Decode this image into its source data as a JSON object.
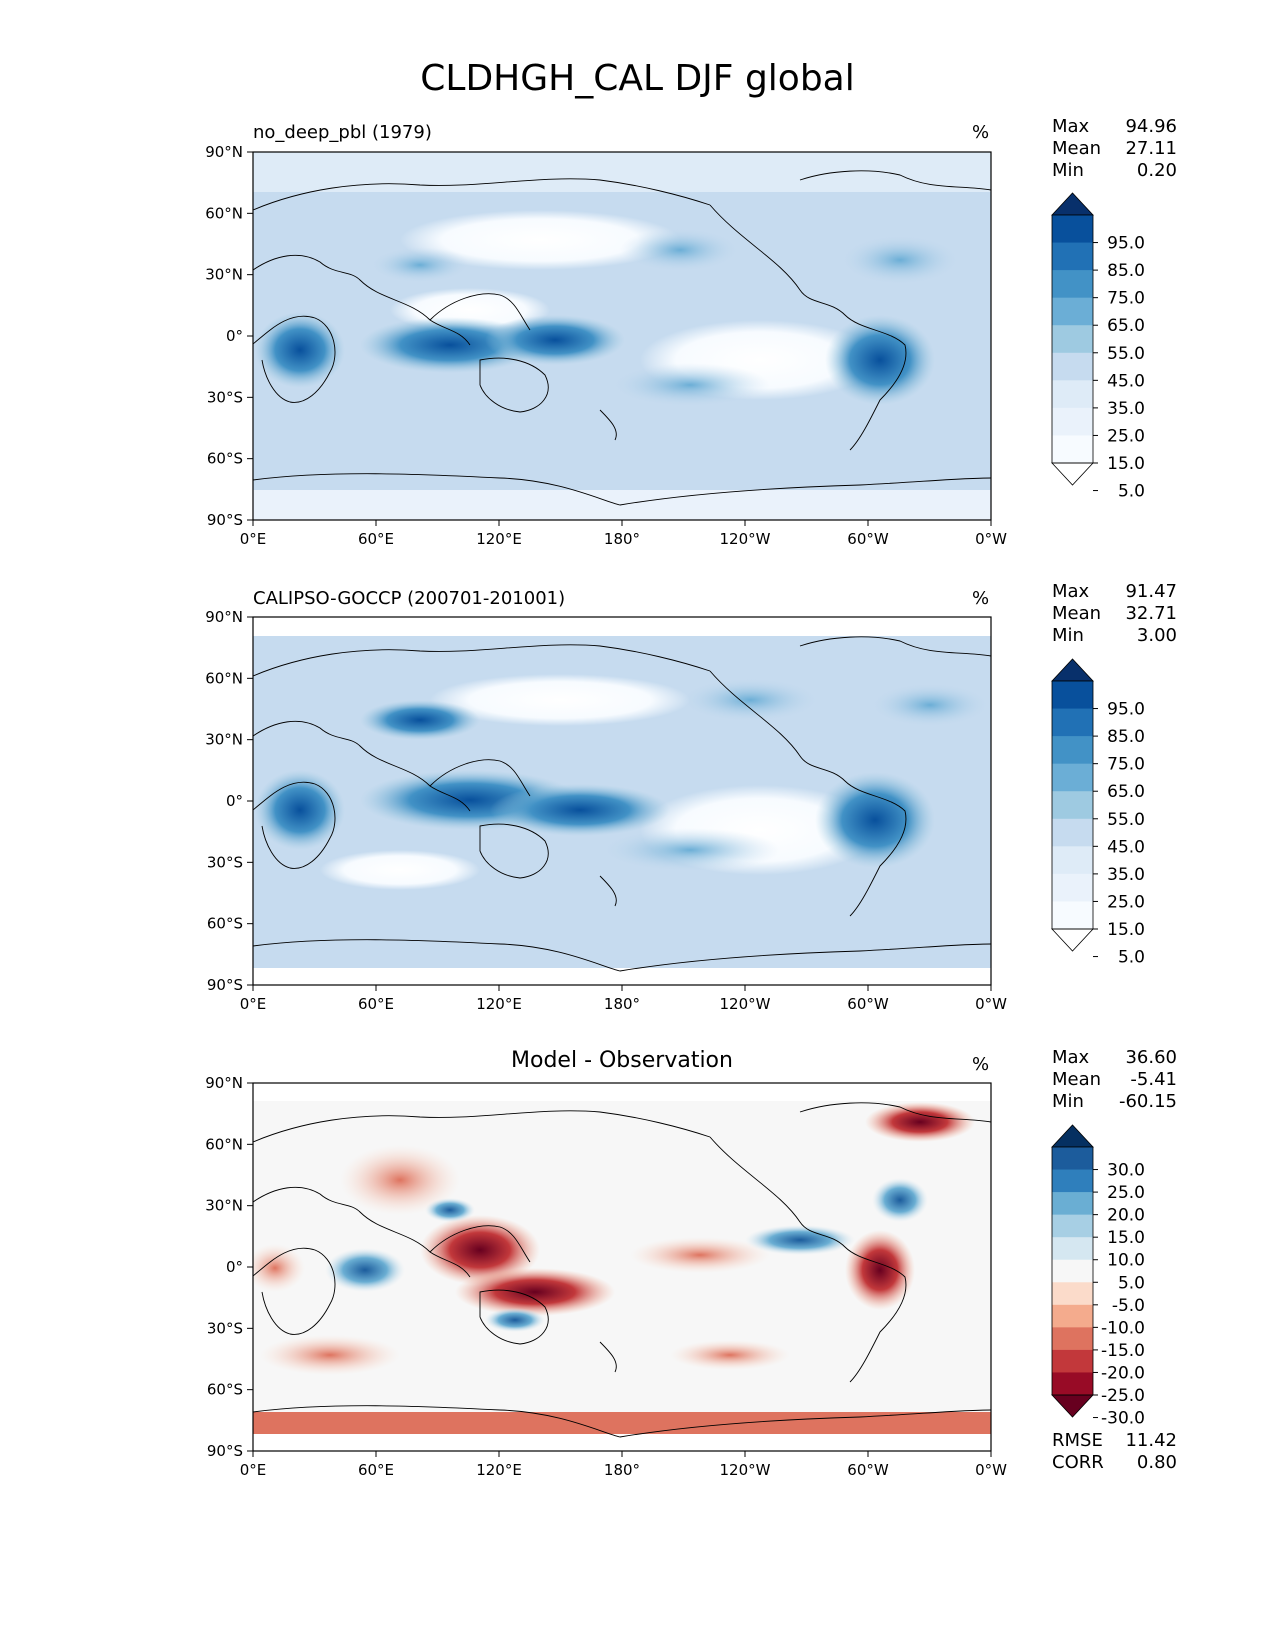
{
  "title": "CLDHGH_CAL DJF global",
  "chart_data": [
    {
      "type": "heatmap",
      "panel_title": "no_deep_pbl (1979)",
      "units": "%",
      "stats": [
        {
          "label": "Max",
          "value": "94.96"
        },
        {
          "label": "Mean",
          "value": "27.11"
        },
        {
          "label": "Min",
          "value": "0.20"
        }
      ],
      "colorbar": {
        "labels": [
          "95.0",
          "85.0",
          "75.0",
          "65.0",
          "55.0",
          "45.0",
          "35.0",
          "25.0",
          "15.0",
          "5.0"
        ],
        "colors": [
          "#08306b",
          "#08509c",
          "#2171b5",
          "#4292c6",
          "#6baed6",
          "#9ecae1",
          "#c6dbef",
          "#deebf7",
          "#eaf2fb",
          "#f7fbff",
          "#ffffff"
        ]
      },
      "xticks": [
        "0°E",
        "60°E",
        "120°E",
        "180°",
        "120°W",
        "60°W",
        "0°W"
      ],
      "yticks": [
        "90°N",
        "60°N",
        "30°N",
        "0°",
        "30°S",
        "60°S",
        "90°S"
      ],
      "ylim": [
        -90,
        90
      ],
      "xlim": [
        0,
        360
      ]
    },
    {
      "type": "heatmap",
      "panel_title": "CALIPSO-GOCCP (200701-201001)",
      "units": "%",
      "stats": [
        {
          "label": "Max",
          "value": "91.47"
        },
        {
          "label": "Mean",
          "value": "32.71"
        },
        {
          "label": "Min",
          "value": "3.00"
        }
      ],
      "colorbar": {
        "labels": [
          "95.0",
          "85.0",
          "75.0",
          "65.0",
          "55.0",
          "45.0",
          "35.0",
          "25.0",
          "15.0",
          "5.0"
        ],
        "colors": [
          "#08306b",
          "#08509c",
          "#2171b5",
          "#4292c6",
          "#6baed6",
          "#9ecae1",
          "#c6dbef",
          "#deebf7",
          "#eaf2fb",
          "#f7fbff",
          "#ffffff"
        ]
      },
      "xticks": [
        "0°E",
        "60°E",
        "120°E",
        "180°",
        "120°W",
        "60°W",
        "0°W"
      ],
      "yticks": [
        "90°N",
        "60°N",
        "30°N",
        "0°",
        "30°S",
        "60°S",
        "90°S"
      ],
      "ylim": [
        -90,
        90
      ],
      "xlim": [
        0,
        360
      ]
    },
    {
      "type": "heatmap",
      "panel_title": "Model - Observation",
      "units": "%",
      "stats": [
        {
          "label": "Max",
          "value": "36.60"
        },
        {
          "label": "Mean",
          "value": "-5.41"
        },
        {
          "label": "Min",
          "value": "-60.15"
        }
      ],
      "colorbar": {
        "labels": [
          "30.0",
          "25.0",
          "20.0",
          "15.0",
          "10.0",
          "5.0",
          "-5.0",
          "-10.0",
          "-15.0",
          "-20.0",
          "-25.0",
          "-30.0"
        ],
        "colors": [
          "#053061",
          "#1c5c9c",
          "#2f7fbc",
          "#6aaed3",
          "#a7cfe4",
          "#d5e7f1",
          "#f7f7f7",
          "#fbdbca",
          "#f4ab8d",
          "#de735f",
          "#c2383b",
          "#980b26",
          "#67001f"
        ]
      },
      "extra_stats": [
        {
          "label": "RMSE",
          "value": "11.42"
        },
        {
          "label": "CORR",
          "value": "0.80"
        }
      ],
      "xticks": [
        "0°E",
        "60°E",
        "120°E",
        "180°",
        "120°W",
        "60°W",
        "0°W"
      ],
      "yticks": [
        "90°N",
        "60°N",
        "30°N",
        "0°",
        "30°S",
        "60°S",
        "90°S"
      ],
      "ylim": [
        -90,
        90
      ],
      "xlim": [
        0,
        360
      ]
    }
  ]
}
